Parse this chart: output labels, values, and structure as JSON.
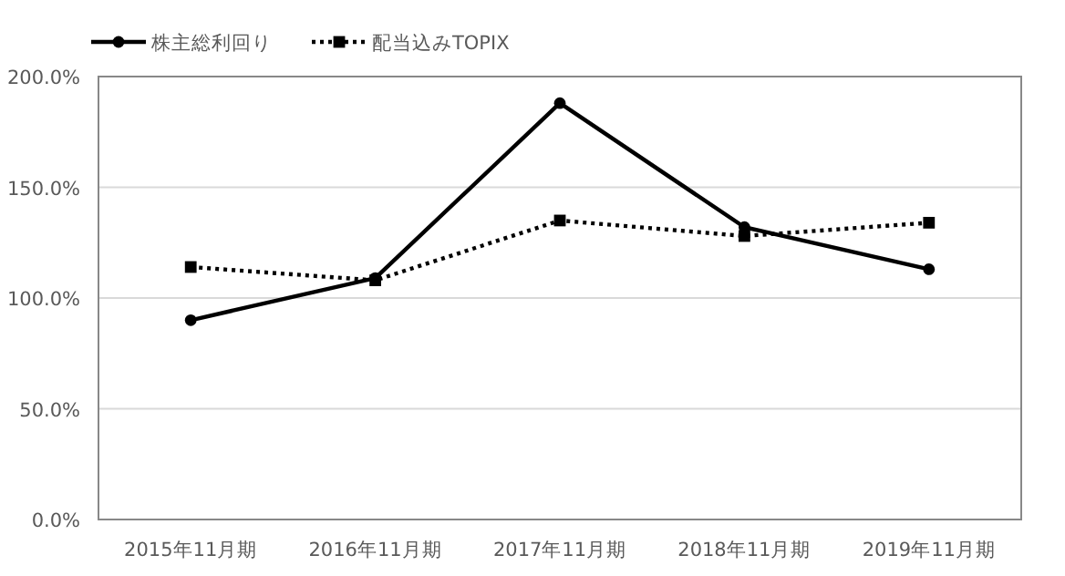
{
  "chart_data": {
    "type": "line",
    "categories": [
      "2015年11月期",
      "2016年11月期",
      "2017年11月期",
      "2018年11月期",
      "2019年11月期"
    ],
    "series": [
      {
        "name": "株主総利回り",
        "color": "#000000",
        "values": [
          90,
          109,
          188,
          132,
          113
        ],
        "marker": "circle",
        "line_style": "solid"
      },
      {
        "name": "配当込みTOPIX",
        "color": "#000000",
        "values": [
          114,
          108,
          135,
          128,
          134
        ],
        "marker": "square",
        "line_style": "dotted"
      }
    ],
    "ylim": [
      0,
      200
    ],
    "yticks": [
      {
        "value": 0,
        "label": "0.0%"
      },
      {
        "value": 50,
        "label": "50.0%"
      },
      {
        "value": 100,
        "label": "100.0%"
      },
      {
        "value": 150,
        "label": "150.0%"
      },
      {
        "value": 200,
        "label": "200.0%"
      }
    ],
    "grid": "y",
    "legend": "top left"
  }
}
